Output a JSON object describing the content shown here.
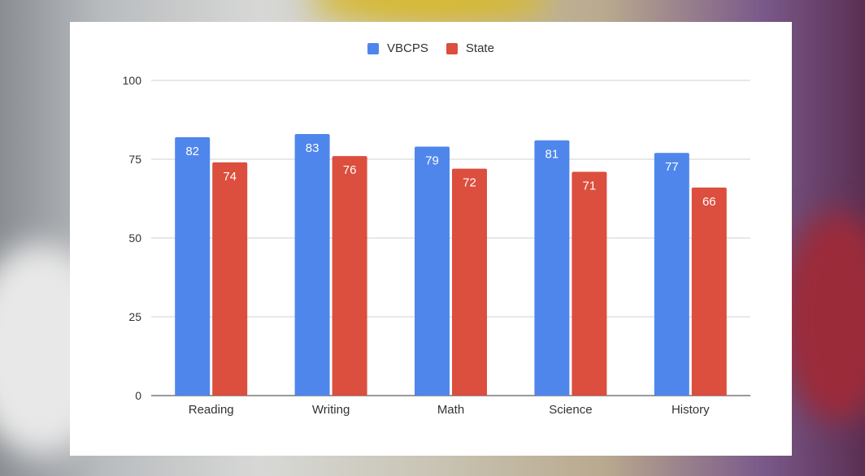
{
  "chart_data": {
    "type": "bar",
    "categories": [
      "Reading",
      "Writing",
      "Math",
      "Science",
      "History"
    ],
    "series": [
      {
        "name": "VBCPS",
        "color": "#4f86ec",
        "values": [
          82,
          83,
          79,
          81,
          77
        ]
      },
      {
        "name": "State",
        "color": "#dc4e3d",
        "values": [
          74,
          76,
          72,
          71,
          66
        ]
      }
    ],
    "y_ticks": [
      "0",
      "25",
      "50",
      "75",
      "100"
    ],
    "ylim": [
      0,
      100
    ],
    "grid": true,
    "legend_position": "top-center",
    "title": "",
    "xlabel": "",
    "ylabel": ""
  }
}
